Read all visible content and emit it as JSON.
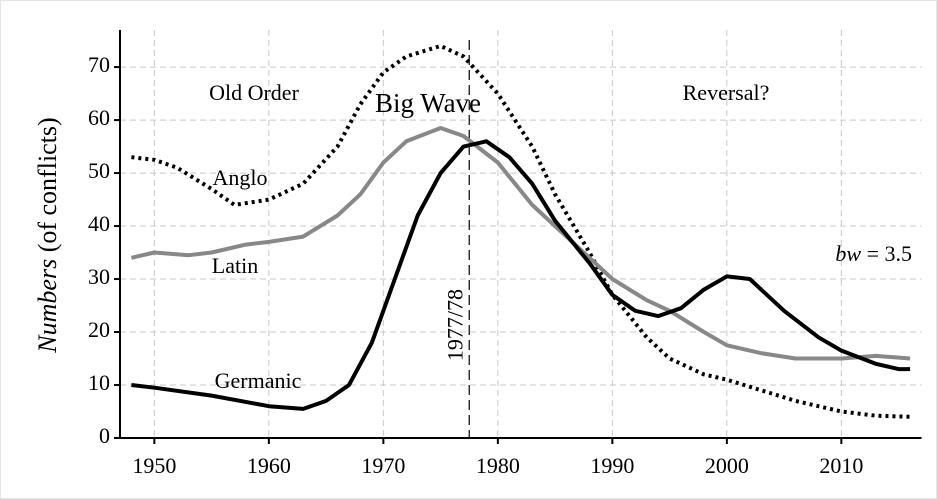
{
  "chart_data": {
    "type": "line",
    "ylabel": {
      "italic": "Numbers",
      "rest": "(of conflicts)"
    },
    "annotations": [
      "Old Order",
      "Big Wave",
      "Reversal?"
    ],
    "bandwidth": {
      "var": "bw",
      "text": "= 3.5"
    },
    "reference_line": {
      "x": 1977.5,
      "label": "1977/78"
    },
    "xlim": [
      1947,
      2017
    ],
    "xticks": [
      1950,
      1960,
      1970,
      1980,
      1990,
      2000,
      2010
    ],
    "ylim": [
      0,
      77
    ],
    "yticks": [
      0,
      10,
      20,
      30,
      40,
      50,
      60,
      70
    ],
    "grid": true,
    "series": [
      {
        "name": "Anglo",
        "color": "#000000",
        "style": "dotted",
        "x": [
          1948,
          1950,
          1952,
          1955,
          1957,
          1960,
          1963,
          1966,
          1968,
          1970,
          1972,
          1975,
          1977,
          1980,
          1983,
          1985,
          1988,
          1990,
          1993,
          1995,
          1998,
          2000,
          2003,
          2006,
          2010,
          2013,
          2016
        ],
        "values": [
          53,
          52.5,
          51,
          47,
          44,
          45,
          48,
          55,
          63,
          69,
          72,
          74,
          72,
          65,
          55,
          46,
          35,
          27,
          19,
          15,
          12,
          11,
          9,
          7,
          5,
          4.2,
          4
        ]
      },
      {
        "name": "Latin",
        "color": "#888888",
        "style": "solid",
        "x": [
          1948,
          1950,
          1953,
          1955,
          1958,
          1960,
          1963,
          1966,
          1968,
          1970,
          1972,
          1975,
          1977,
          1980,
          1983,
          1985,
          1988,
          1990,
          1993,
          1995,
          1998,
          2000,
          2003,
          2006,
          2010,
          2013,
          2016
        ],
        "values": [
          34,
          35,
          34.5,
          35,
          36.5,
          37,
          38,
          42,
          46,
          52,
          56,
          58.5,
          57,
          52,
          44,
          40,
          34,
          30,
          26,
          24,
          20,
          17.5,
          16,
          15,
          15,
          15.5,
          15
        ]
      },
      {
        "name": "Germanic",
        "color": "#000000",
        "style": "solid",
        "x": [
          1948,
          1950,
          1955,
          1960,
          1963,
          1965,
          1967,
          1969,
          1971,
          1973,
          1975,
          1977,
          1979,
          1981,
          1983,
          1985,
          1988,
          1990,
          1992,
          1994,
          1996,
          1998,
          2000,
          2002,
          2005,
          2008,
          2010,
          2013,
          2015,
          2016
        ],
        "values": [
          10,
          9.5,
          8,
          6,
          5.5,
          7,
          10,
          18,
          30,
          42,
          50,
          55,
          56,
          53,
          48,
          41,
          33,
          27,
          24,
          23,
          24.5,
          28,
          30.5,
          30,
          24,
          19,
          16.5,
          14,
          13,
          13
        ]
      }
    ]
  }
}
